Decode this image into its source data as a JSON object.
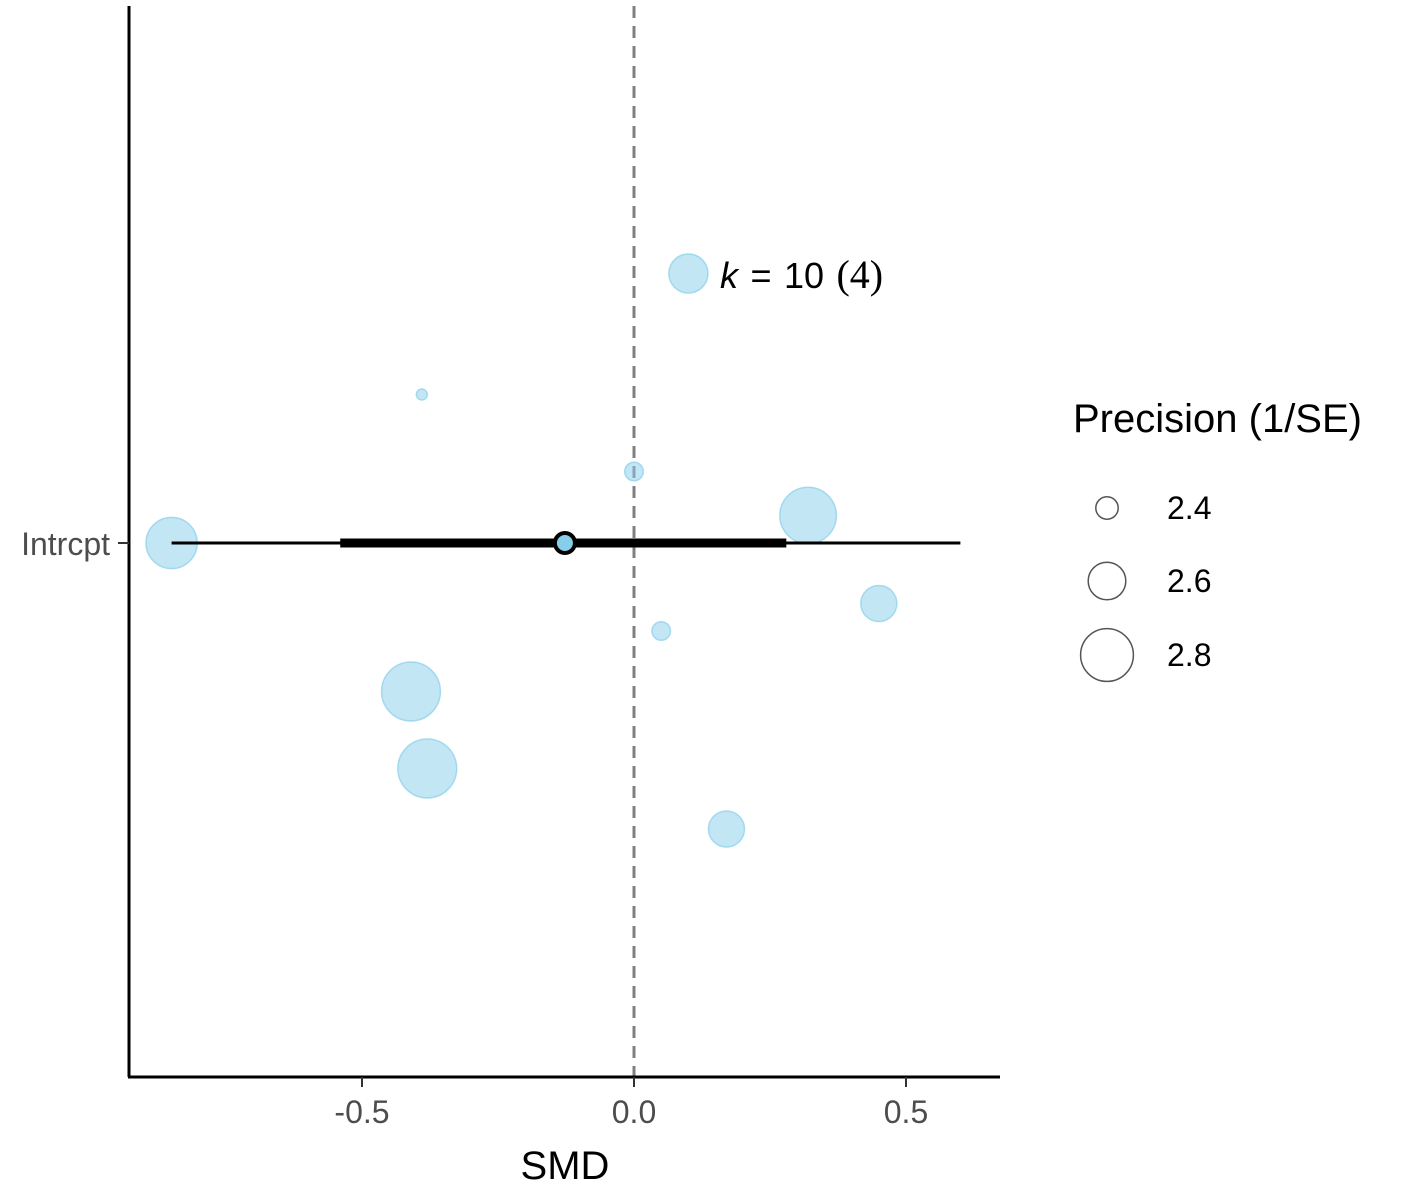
{
  "chart_data": {
    "type": "scatter",
    "subtype": "orchard-plot",
    "title": "",
    "xlabel": "SMD",
    "ylabel": "",
    "xlim": [
      -0.93,
      0.67
    ],
    "x_ticks": [
      -0.5,
      0.0,
      0.5
    ],
    "x_tick_labels": [
      "-0.5",
      "0.0",
      "0.5"
    ],
    "y_categories": [
      "Intrcpt"
    ],
    "reference_line": {
      "x": 0,
      "style": "dashed",
      "color": "#808080"
    },
    "points": [
      {
        "x": 0.1,
        "jitter": 0.49,
        "precision": 2.62
      },
      {
        "x": -0.39,
        "jitter": 0.27,
        "precision": 2.25
      },
      {
        "x": 0.0,
        "jitter": 0.13,
        "precision": 2.35
      },
      {
        "x": 0.32,
        "jitter": 0.05,
        "precision": 2.85
      },
      {
        "x": -0.85,
        "jitter": 0.0,
        "precision": 2.78
      },
      {
        "x": 0.45,
        "jitter": -0.11,
        "precision": 2.58
      },
      {
        "x": 0.05,
        "jitter": -0.16,
        "precision": 2.35
      },
      {
        "x": -0.41,
        "jitter": -0.27,
        "precision": 2.88
      },
      {
        "x": -0.38,
        "jitter": -0.41,
        "precision": 2.88
      },
      {
        "x": 0.17,
        "jitter": -0.52,
        "precision": 2.58
      }
    ],
    "estimate": {
      "x": -0.127,
      "ci": [
        -0.54,
        0.28
      ],
      "pi": [
        -0.85,
        0.6
      ]
    },
    "point_color": "#87ceeb",
    "annotation": {
      "k_symbol": "k",
      "equals": "=",
      "k_value": "10",
      "groups": "(4)"
    },
    "legend": {
      "title": "Precision (1/SE)",
      "position": "right",
      "items": [
        {
          "label": "2.4",
          "value": 2.4
        },
        {
          "label": "2.6",
          "value": 2.6
        },
        {
          "label": "2.8",
          "value": 2.8
        }
      ]
    }
  }
}
